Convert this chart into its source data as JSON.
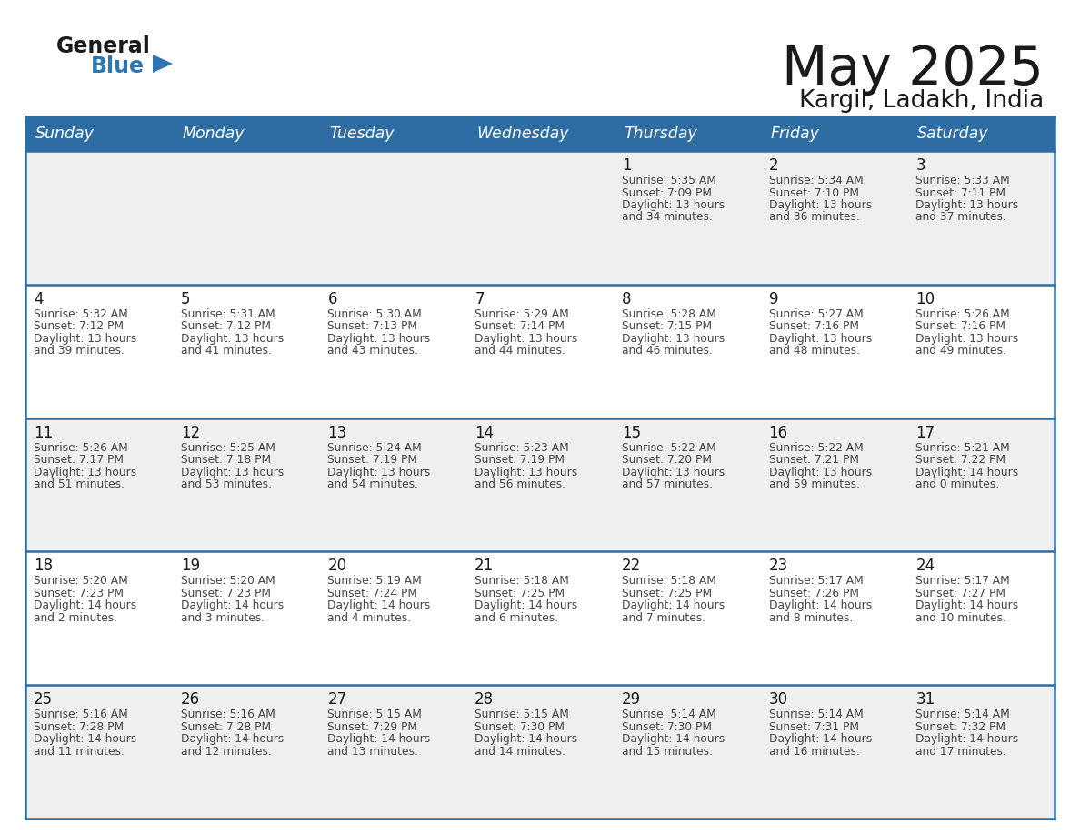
{
  "title": "May 2025",
  "subtitle": "Kargil, Ladakh, India",
  "header_bg": "#2E6DA4",
  "header_text": "#FFFFFF",
  "row_bg_odd": "#EFEFEF",
  "row_bg_even": "#FFFFFF",
  "page_bg": "#FFFFFF",
  "day_names": [
    "Sunday",
    "Monday",
    "Tuesday",
    "Wednesday",
    "Thursday",
    "Friday",
    "Saturday"
  ],
  "title_color": "#1a1a1a",
  "subtitle_color": "#1a1a1a",
  "cell_border_color": "#2E6DA4",
  "day_num_color": "#1a1a1a",
  "cell_text_color": "#444444",
  "logo_general_color": "#1a1a1a",
  "logo_blue_color": "#2E75B6",
  "weeks": [
    [
      {
        "day": null,
        "info": ""
      },
      {
        "day": null,
        "info": ""
      },
      {
        "day": null,
        "info": ""
      },
      {
        "day": null,
        "info": ""
      },
      {
        "day": 1,
        "info": "Sunrise: 5:35 AM\nSunset: 7:09 PM\nDaylight: 13 hours\nand 34 minutes."
      },
      {
        "day": 2,
        "info": "Sunrise: 5:34 AM\nSunset: 7:10 PM\nDaylight: 13 hours\nand 36 minutes."
      },
      {
        "day": 3,
        "info": "Sunrise: 5:33 AM\nSunset: 7:11 PM\nDaylight: 13 hours\nand 37 minutes."
      }
    ],
    [
      {
        "day": 4,
        "info": "Sunrise: 5:32 AM\nSunset: 7:12 PM\nDaylight: 13 hours\nand 39 minutes."
      },
      {
        "day": 5,
        "info": "Sunrise: 5:31 AM\nSunset: 7:12 PM\nDaylight: 13 hours\nand 41 minutes."
      },
      {
        "day": 6,
        "info": "Sunrise: 5:30 AM\nSunset: 7:13 PM\nDaylight: 13 hours\nand 43 minutes."
      },
      {
        "day": 7,
        "info": "Sunrise: 5:29 AM\nSunset: 7:14 PM\nDaylight: 13 hours\nand 44 minutes."
      },
      {
        "day": 8,
        "info": "Sunrise: 5:28 AM\nSunset: 7:15 PM\nDaylight: 13 hours\nand 46 minutes."
      },
      {
        "day": 9,
        "info": "Sunrise: 5:27 AM\nSunset: 7:16 PM\nDaylight: 13 hours\nand 48 minutes."
      },
      {
        "day": 10,
        "info": "Sunrise: 5:26 AM\nSunset: 7:16 PM\nDaylight: 13 hours\nand 49 minutes."
      }
    ],
    [
      {
        "day": 11,
        "info": "Sunrise: 5:26 AM\nSunset: 7:17 PM\nDaylight: 13 hours\nand 51 minutes."
      },
      {
        "day": 12,
        "info": "Sunrise: 5:25 AM\nSunset: 7:18 PM\nDaylight: 13 hours\nand 53 minutes."
      },
      {
        "day": 13,
        "info": "Sunrise: 5:24 AM\nSunset: 7:19 PM\nDaylight: 13 hours\nand 54 minutes."
      },
      {
        "day": 14,
        "info": "Sunrise: 5:23 AM\nSunset: 7:19 PM\nDaylight: 13 hours\nand 56 minutes."
      },
      {
        "day": 15,
        "info": "Sunrise: 5:22 AM\nSunset: 7:20 PM\nDaylight: 13 hours\nand 57 minutes."
      },
      {
        "day": 16,
        "info": "Sunrise: 5:22 AM\nSunset: 7:21 PM\nDaylight: 13 hours\nand 59 minutes."
      },
      {
        "day": 17,
        "info": "Sunrise: 5:21 AM\nSunset: 7:22 PM\nDaylight: 14 hours\nand 0 minutes."
      }
    ],
    [
      {
        "day": 18,
        "info": "Sunrise: 5:20 AM\nSunset: 7:23 PM\nDaylight: 14 hours\nand 2 minutes."
      },
      {
        "day": 19,
        "info": "Sunrise: 5:20 AM\nSunset: 7:23 PM\nDaylight: 14 hours\nand 3 minutes."
      },
      {
        "day": 20,
        "info": "Sunrise: 5:19 AM\nSunset: 7:24 PM\nDaylight: 14 hours\nand 4 minutes."
      },
      {
        "day": 21,
        "info": "Sunrise: 5:18 AM\nSunset: 7:25 PM\nDaylight: 14 hours\nand 6 minutes."
      },
      {
        "day": 22,
        "info": "Sunrise: 5:18 AM\nSunset: 7:25 PM\nDaylight: 14 hours\nand 7 minutes."
      },
      {
        "day": 23,
        "info": "Sunrise: 5:17 AM\nSunset: 7:26 PM\nDaylight: 14 hours\nand 8 minutes."
      },
      {
        "day": 24,
        "info": "Sunrise: 5:17 AM\nSunset: 7:27 PM\nDaylight: 14 hours\nand 10 minutes."
      }
    ],
    [
      {
        "day": 25,
        "info": "Sunrise: 5:16 AM\nSunset: 7:28 PM\nDaylight: 14 hours\nand 11 minutes."
      },
      {
        "day": 26,
        "info": "Sunrise: 5:16 AM\nSunset: 7:28 PM\nDaylight: 14 hours\nand 12 minutes."
      },
      {
        "day": 27,
        "info": "Sunrise: 5:15 AM\nSunset: 7:29 PM\nDaylight: 14 hours\nand 13 minutes."
      },
      {
        "day": 28,
        "info": "Sunrise: 5:15 AM\nSunset: 7:30 PM\nDaylight: 14 hours\nand 14 minutes."
      },
      {
        "day": 29,
        "info": "Sunrise: 5:14 AM\nSunset: 7:30 PM\nDaylight: 14 hours\nand 15 minutes."
      },
      {
        "day": 30,
        "info": "Sunrise: 5:14 AM\nSunset: 7:31 PM\nDaylight: 14 hours\nand 16 minutes."
      },
      {
        "day": 31,
        "info": "Sunrise: 5:14 AM\nSunset: 7:32 PM\nDaylight: 14 hours\nand 17 minutes."
      }
    ]
  ]
}
